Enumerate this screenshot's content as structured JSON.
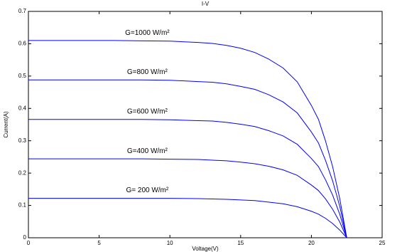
{
  "chart_data": {
    "type": "line",
    "title": "I-V",
    "xlabel": "Voltage(V)",
    "ylabel": "Current(A)",
    "x": [
      0,
      2,
      4,
      6,
      8,
      10,
      12,
      13,
      14,
      15,
      16,
      17,
      18,
      19,
      20,
      20.5,
      21,
      21.5,
      22,
      22.5
    ],
    "series": [
      {
        "name": "G=1000 W/m²",
        "color": "#0000ff",
        "values": [
          0.61,
          0.61,
          0.61,
          0.61,
          0.609,
          0.608,
          0.604,
          0.601,
          0.595,
          0.586,
          0.573,
          0.552,
          0.525,
          0.482,
          0.409,
          0.366,
          0.299,
          0.22,
          0.122,
          0
        ]
      },
      {
        "name": "G=800 W/m²",
        "color": "#0000ff",
        "values": [
          0.488,
          0.488,
          0.488,
          0.488,
          0.488,
          0.487,
          0.483,
          0.481,
          0.476,
          0.468,
          0.459,
          0.442,
          0.42,
          0.386,
          0.327,
          0.293,
          0.239,
          0.176,
          0.098,
          0
        ]
      },
      {
        "name": "G=600 W/m²",
        "color": "#0000ff",
        "values": [
          0.366,
          0.366,
          0.366,
          0.366,
          0.366,
          0.365,
          0.362,
          0.361,
          0.357,
          0.351,
          0.344,
          0.331,
          0.315,
          0.289,
          0.245,
          0.22,
          0.179,
          0.132,
          0.073,
          0
        ]
      },
      {
        "name": "G=400 W/m²",
        "color": "#0000ff",
        "values": [
          0.244,
          0.244,
          0.244,
          0.244,
          0.244,
          0.243,
          0.242,
          0.24,
          0.238,
          0.234,
          0.229,
          0.221,
          0.21,
          0.193,
          0.163,
          0.146,
          0.12,
          0.088,
          0.049,
          0
        ]
      },
      {
        "name": "G= 200 W/m²",
        "color": "#0000ff",
        "values": [
          0.122,
          0.122,
          0.122,
          0.122,
          0.122,
          0.122,
          0.121,
          0.12,
          0.119,
          0.117,
          0.115,
          0.11,
          0.105,
          0.096,
          0.082,
          0.073,
          0.06,
          0.044,
          0.024,
          0
        ]
      }
    ],
    "xlim": [
      0,
      25
    ],
    "xticks": [
      0,
      5,
      10,
      15,
      20,
      25
    ],
    "ylim": [
      0,
      0.7
    ],
    "yticks": [
      0,
      0.1,
      0.2,
      0.3,
      0.4,
      0.5,
      0.6,
      0.7
    ],
    "grid": false
  }
}
